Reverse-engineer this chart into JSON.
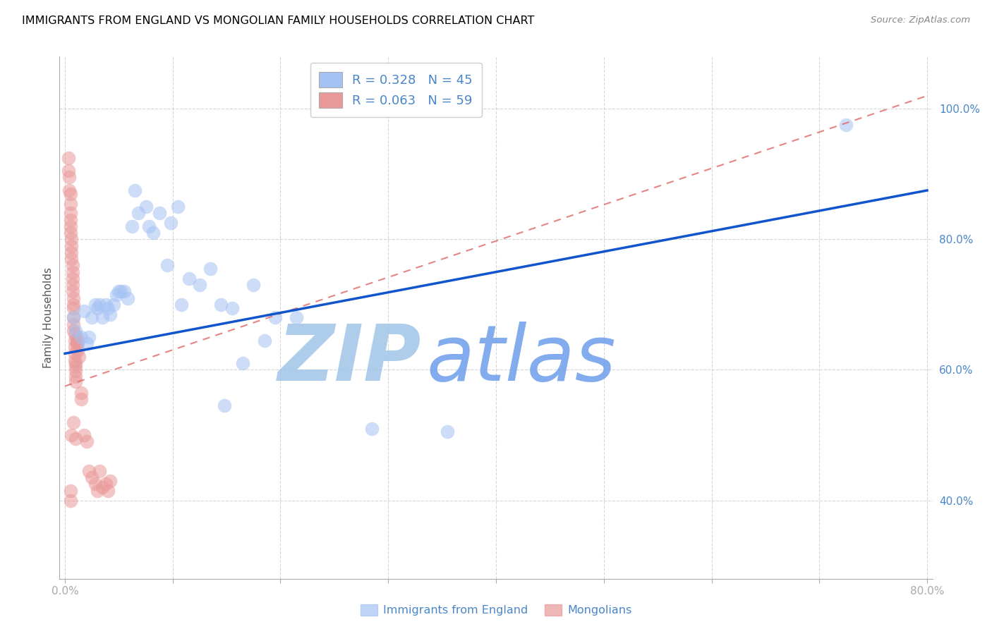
{
  "title": "IMMIGRANTS FROM ENGLAND VS MONGOLIAN FAMILY HOUSEHOLDS CORRELATION CHART",
  "source": "Source: ZipAtlas.com",
  "xlabel": "",
  "ylabel": "Family Households",
  "xlim": [
    -0.005,
    0.805
  ],
  "ylim": [
    0.28,
    1.08
  ],
  "yticks": [
    0.4,
    0.6,
    0.8,
    1.0
  ],
  "ytick_labels": [
    "40.0%",
    "60.0%",
    "80.0%",
    "100.0%"
  ],
  "xticks": [
    0.0,
    0.1,
    0.2,
    0.3,
    0.4,
    0.5,
    0.6,
    0.7,
    0.8
  ],
  "xtick_labels": [
    "0.0%",
    "",
    "",
    "",
    "",
    "",
    "",
    "",
    "80.0%"
  ],
  "blue_R": 0.328,
  "blue_N": 45,
  "pink_R": 0.063,
  "pink_N": 59,
  "blue_color": "#a4c2f4",
  "pink_color": "#ea9999",
  "blue_line_color": "#1155cc",
  "pink_line_color": "#e06666",
  "axis_color": "#4a86c8",
  "grid_color": "#cccccc",
  "title_color": "#000000",
  "watermark_zip_color": "#9fc5e8",
  "watermark_atlas_color": "#6d9eeb",
  "blue_scatter_x": [
    0.008,
    0.01,
    0.015,
    0.018,
    0.02,
    0.022,
    0.025,
    0.028,
    0.03,
    0.032,
    0.035,
    0.038,
    0.04,
    0.042,
    0.045,
    0.048,
    0.05,
    0.052,
    0.055,
    0.058,
    0.062,
    0.065,
    0.068,
    0.075,
    0.078,
    0.082,
    0.088,
    0.095,
    0.098,
    0.105,
    0.108,
    0.115,
    0.125,
    0.135,
    0.145,
    0.148,
    0.155,
    0.165,
    0.175,
    0.185,
    0.195,
    0.215,
    0.285,
    0.355,
    0.725
  ],
  "blue_scatter_y": [
    0.68,
    0.66,
    0.65,
    0.69,
    0.64,
    0.65,
    0.68,
    0.7,
    0.695,
    0.7,
    0.68,
    0.7,
    0.695,
    0.685,
    0.7,
    0.715,
    0.72,
    0.72,
    0.72,
    0.71,
    0.82,
    0.875,
    0.84,
    0.85,
    0.82,
    0.81,
    0.84,
    0.76,
    0.825,
    0.85,
    0.7,
    0.74,
    0.73,
    0.755,
    0.7,
    0.545,
    0.695,
    0.61,
    0.73,
    0.645,
    0.68,
    0.68,
    0.51,
    0.505,
    0.975
  ],
  "pink_scatter_x": [
    0.003,
    0.003,
    0.004,
    0.004,
    0.005,
    0.005,
    0.005,
    0.005,
    0.005,
    0.005,
    0.006,
    0.006,
    0.006,
    0.006,
    0.007,
    0.007,
    0.007,
    0.007,
    0.007,
    0.008,
    0.008,
    0.008,
    0.008,
    0.008,
    0.008,
    0.009,
    0.009,
    0.009,
    0.009,
    0.009,
    0.01,
    0.01,
    0.01,
    0.01,
    0.01,
    0.011,
    0.011,
    0.011,
    0.012,
    0.012,
    0.013,
    0.015,
    0.015,
    0.018,
    0.02,
    0.022,
    0.025,
    0.028,
    0.03,
    0.032,
    0.035,
    0.038,
    0.04,
    0.042,
    0.005,
    0.005,
    0.006,
    0.008,
    0.01
  ],
  "pink_scatter_y": [
    0.925,
    0.905,
    0.895,
    0.875,
    0.87,
    0.855,
    0.84,
    0.83,
    0.82,
    0.81,
    0.8,
    0.79,
    0.78,
    0.77,
    0.76,
    0.75,
    0.74,
    0.73,
    0.72,
    0.71,
    0.7,
    0.695,
    0.68,
    0.67,
    0.66,
    0.655,
    0.645,
    0.635,
    0.625,
    0.615,
    0.61,
    0.605,
    0.598,
    0.59,
    0.582,
    0.65,
    0.645,
    0.64,
    0.64,
    0.63,
    0.62,
    0.565,
    0.555,
    0.5,
    0.49,
    0.445,
    0.435,
    0.425,
    0.415,
    0.445,
    0.42,
    0.425,
    0.415,
    0.43,
    0.415,
    0.4,
    0.5,
    0.52,
    0.495
  ],
  "blue_trendline_x": [
    0.0,
    0.8
  ],
  "blue_trendline_y": [
    0.625,
    0.875
  ],
  "pink_trendline_x": [
    0.0,
    0.8
  ],
  "pink_trendline_y": [
    0.575,
    1.02
  ]
}
